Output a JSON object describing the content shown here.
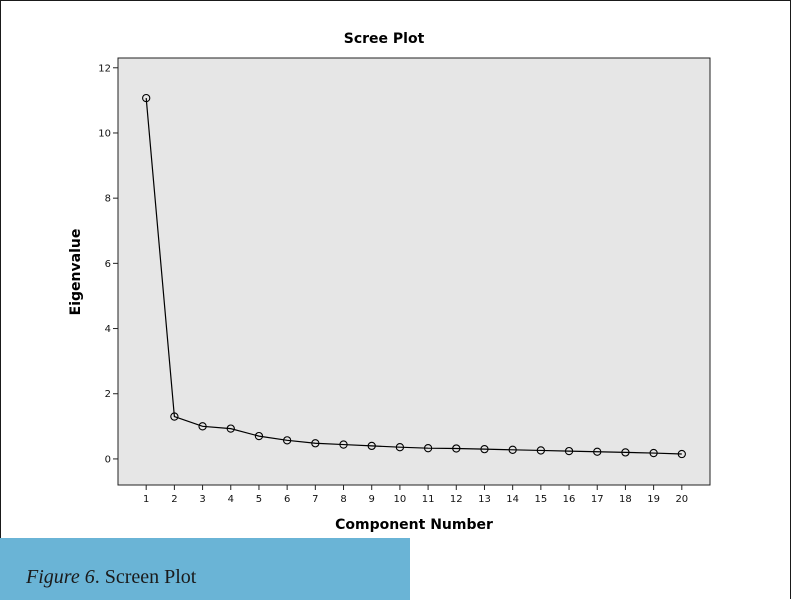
{
  "chart_data": {
    "type": "line",
    "title": "Scree Plot",
    "xlabel": "Component Number",
    "ylabel": "Eigenvalue",
    "x": [
      1,
      2,
      3,
      4,
      5,
      6,
      7,
      8,
      9,
      10,
      11,
      12,
      13,
      14,
      15,
      16,
      17,
      18,
      19,
      20
    ],
    "y": [
      11.07,
      1.3,
      1.0,
      0.93,
      0.7,
      0.57,
      0.48,
      0.44,
      0.4,
      0.36,
      0.33,
      0.32,
      0.3,
      0.28,
      0.26,
      0.24,
      0.22,
      0.2,
      0.18,
      0.15
    ],
    "yticks": [
      0,
      2,
      4,
      6,
      8,
      10,
      12
    ],
    "xticks": [
      1,
      2,
      3,
      4,
      5,
      6,
      7,
      8,
      9,
      10,
      11,
      12,
      13,
      14,
      15,
      16,
      17,
      18,
      19,
      20
    ],
    "xlim": [
      0,
      21
    ],
    "ylim": [
      -0.8,
      12.3
    ],
    "grid": false,
    "plot_background": "#e6e6e6",
    "line_color": "#000000",
    "marker": "open-circle"
  },
  "caption": {
    "figure_label": "Figure 6",
    "text": ". Screen Plot"
  },
  "colors": {
    "caption_band": "#6ab4d6"
  }
}
